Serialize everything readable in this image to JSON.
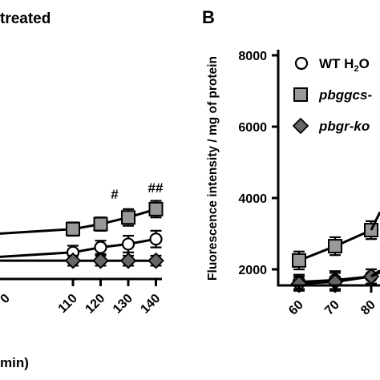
{
  "chart_data": [
    {
      "type": "line",
      "panel_label": "",
      "title_fragment": "treated",
      "x_tick_labels": [
        "110",
        "120",
        "130",
        "140"
      ],
      "x_tick_fragment": "0",
      "xlabel_fragment": "min)",
      "ylabel": "",
      "xlim": [
        102,
        143
      ],
      "ylim": [
        1250,
        4000
      ],
      "series": [
        {
          "marker": "square",
          "fill": "#999999",
          "x": [
            110,
            120,
            130,
            140
          ],
          "y": [
            2750,
            2900,
            3100,
            3350
          ],
          "err": [
            200,
            200,
            250,
            250
          ]
        },
        {
          "marker": "circle",
          "fill": "#ffffff",
          "x": [
            110,
            120,
            130,
            140
          ],
          "y": [
            2050,
            2200,
            2300,
            2450
          ],
          "err": [
            200,
            200,
            250,
            250
          ]
        },
        {
          "marker": "diamond",
          "fill": "#666666",
          "x": [
            110,
            120,
            130,
            140
          ],
          "y": [
            1800,
            1800,
            1800,
            1800
          ],
          "err": [
            150,
            150,
            150,
            150
          ]
        }
      ],
      "annotations": [
        {
          "text": "#",
          "x": 130,
          "y": 3900
        },
        {
          "text": "##",
          "x": 140,
          "y": 4100
        }
      ]
    },
    {
      "type": "line",
      "panel_label": "B",
      "ylabel": "Fluorescence intensity / mg of protein",
      "xlabel": "",
      "x_tick_labels": [
        "60",
        "70",
        "80"
      ],
      "y_tick_labels": [
        "2000",
        "4000",
        "6000",
        "8000"
      ],
      "y_ticks": [
        2000,
        4000,
        6000,
        8000
      ],
      "xlim": [
        52,
        85
      ],
      "ylim": [
        1000,
        8500
      ],
      "legend": {
        "placement": "top-right",
        "entries": [
          {
            "marker": "circle",
            "fill": "#ffffff",
            "text_main": "WT H",
            "text_sub": "2",
            "text_tail": "O"
          },
          {
            "marker": "square",
            "fill": "#999999",
            "text_main": "pbggcs-",
            "italic": true
          },
          {
            "marker": "diamond",
            "fill": "#666666",
            "text_main": "pbgr-ko",
            "italic": true
          }
        ]
      },
      "series": [
        {
          "marker": "square",
          "fill": "#999999",
          "x": [
            60,
            70,
            80
          ],
          "y": [
            2250,
            2650,
            3100
          ],
          "err": [
            250,
            250,
            250
          ]
        },
        {
          "marker": "circle",
          "fill": "#ffffff",
          "x": [
            60,
            70,
            80
          ],
          "y": [
            1650,
            1700,
            1800
          ],
          "err": [
            200,
            250,
            200
          ]
        },
        {
          "marker": "diamond",
          "fill": "#666666",
          "x": [
            60,
            70,
            80
          ],
          "y": [
            1600,
            1650,
            1800
          ],
          "err": [
            200,
            250,
            200
          ]
        }
      ]
    }
  ]
}
